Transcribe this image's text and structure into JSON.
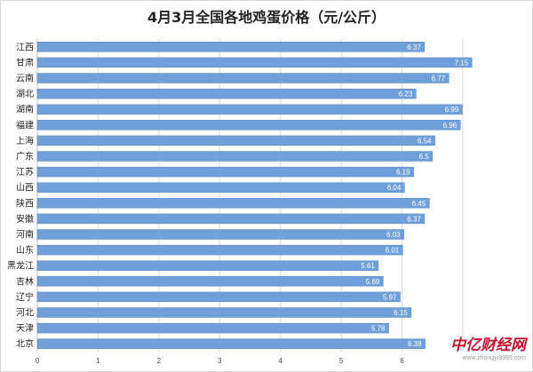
{
  "chart_data": {
    "type": "bar",
    "orientation": "horizontal",
    "title": "4月3月全国各地鸡蛋价格（元/公斤）",
    "categories": [
      "江西",
      "甘肃",
      "云南",
      "湖北",
      "湖南",
      "福建",
      "上海",
      "广东",
      "江苏",
      "山西",
      "陕西",
      "安徽",
      "河南",
      "山东",
      "黑龙江",
      "吉林",
      "辽宁",
      "河北",
      "天津",
      "北京"
    ],
    "values": [
      6.37,
      7.15,
      6.77,
      6.23,
      6.99,
      6.96,
      6.54,
      6.5,
      6.19,
      6.04,
      6.45,
      6.37,
      6.03,
      6.01,
      5.61,
      5.69,
      5.97,
      6.15,
      5.78,
      6.38
    ],
    "value_labels": [
      "6.37",
      "7.15",
      "6.77",
      "6.23",
      "6.99",
      "6.96",
      "6.54",
      "6.5",
      "6.19",
      "6.04",
      "6.45",
      "6.37",
      "6.03",
      "6.01",
      "5.61",
      "5.69",
      "5.97",
      "6.15",
      "5.78",
      "6.38"
    ],
    "xlim": [
      0,
      7
    ],
    "x_ticks": [
      "0",
      "1",
      "2",
      "3",
      "4",
      "5",
      "6"
    ],
    "grid": true,
    "bar_color": "#6fa0da"
  },
  "watermark": {
    "brand": "中亿财经网",
    "url": "www.zhongyi9999.com"
  }
}
